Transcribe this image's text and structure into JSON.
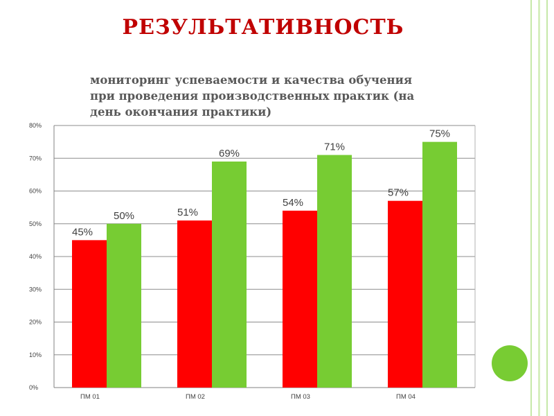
{
  "slide": {
    "title": "РЕЗУЛЬТАТИВНОСТЬ"
  },
  "colors": {
    "title": "#c00000",
    "series_red": "#ff0000",
    "series_green": "#77cc33",
    "frame": "#c6e8a8",
    "decor_circle": "#78cc33"
  },
  "chart_data": {
    "type": "bar",
    "title": "мониторинг успеваемости и качества обучения при проведения производственных практик (на день окончания практики)",
    "categories": [
      "ПМ 01",
      "ПМ 02",
      "ПМ 03",
      "ПМ 04"
    ],
    "series": [
      {
        "color": "#ff0000",
        "values": [
          45,
          51,
          54,
          57
        ],
        "labels": [
          "45%",
          "51%",
          "54%",
          "57%"
        ]
      },
      {
        "color": "#77cc33",
        "values": [
          50,
          69,
          71,
          75
        ],
        "labels": [
          "50%",
          "69%",
          "71%",
          "75%"
        ]
      }
    ],
    "ylim": [
      0,
      80
    ],
    "yticks": [
      0,
      10,
      20,
      30,
      40,
      50,
      60,
      70,
      80
    ],
    "ytick_labels": [
      "0%",
      "10%",
      "20%",
      "30%",
      "40%",
      "50%",
      "60%",
      "70%",
      "80%"
    ],
    "grid": true,
    "legend": "none"
  }
}
